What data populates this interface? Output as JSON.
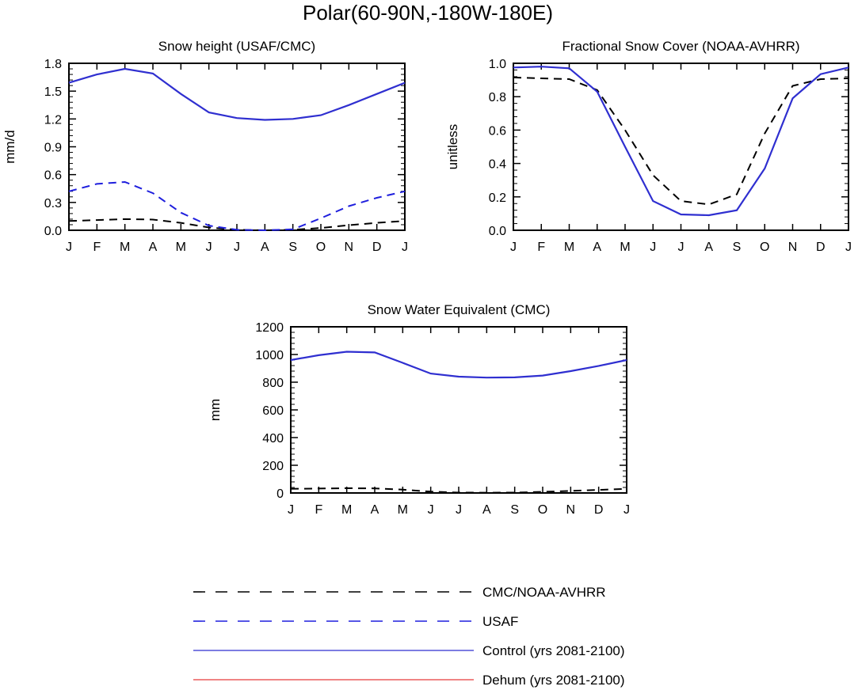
{
  "figure": {
    "title": "Polar(60-90N,-180W-180E)"
  },
  "colors": {
    "obs": "#000000",
    "usaf": "#1f1fdd",
    "control": "#2f2fd0",
    "dehum": "#e83a3a"
  },
  "chart_data": [
    {
      "type": "line",
      "title": "Snow height (USAF/CMC)",
      "ylabel": "mm/d",
      "xlabel": "",
      "categories": [
        "J",
        "F",
        "M",
        "A",
        "M",
        "J",
        "J",
        "A",
        "S",
        "O",
        "N",
        "D",
        "J"
      ],
      "ylim": [
        0,
        1.8
      ],
      "yticks": [
        "0.0",
        "0.3",
        "0.6",
        "0.9",
        "1.2",
        "1.5",
        "1.8"
      ],
      "series": [
        {
          "name": "CMC/NOAA-AVHRR",
          "style": "dashed",
          "color": "#000000",
          "values": [
            0.1,
            0.11,
            0.12,
            0.115,
            0.08,
            0.03,
            0.005,
            0.0,
            0.005,
            0.025,
            0.055,
            0.08,
            0.1
          ]
        },
        {
          "name": "USAF",
          "style": "dashed",
          "color": "#1f1fdd",
          "values": [
            0.42,
            0.5,
            0.52,
            0.4,
            0.19,
            0.05,
            0.005,
            0.0,
            0.01,
            0.13,
            0.26,
            0.35,
            0.42
          ]
        },
        {
          "name": "Control (yrs 2081-2100)",
          "style": "solid",
          "color": "#2f2fd0",
          "values": [
            1.59,
            1.68,
            1.74,
            1.69,
            1.47,
            1.27,
            1.21,
            1.19,
            1.2,
            1.24,
            1.35,
            1.47,
            1.59
          ]
        }
      ]
    },
    {
      "type": "line",
      "title": "Fractional Snow Cover (NOAA-AVHRR)",
      "ylabel": "unitless",
      "xlabel": "",
      "categories": [
        "J",
        "F",
        "M",
        "A",
        "M",
        "J",
        "J",
        "A",
        "S",
        "O",
        "N",
        "D",
        "J"
      ],
      "ylim": [
        0,
        1.0
      ],
      "yticks": [
        "0.0",
        "0.2",
        "0.4",
        "0.6",
        "0.8",
        "1.0"
      ],
      "series": [
        {
          "name": "CMC/NOAA-AVHRR",
          "style": "dashed",
          "color": "#000000",
          "values": [
            0.915,
            0.91,
            0.905,
            0.84,
            0.6,
            0.33,
            0.175,
            0.155,
            0.215,
            0.58,
            0.865,
            0.905,
            0.91
          ]
        },
        {
          "name": "Control (yrs 2081-2100)",
          "style": "solid",
          "color": "#2f2fd0",
          "values": [
            0.975,
            0.98,
            0.97,
            0.83,
            0.5,
            0.175,
            0.095,
            0.09,
            0.12,
            0.37,
            0.79,
            0.935,
            0.975
          ]
        }
      ]
    },
    {
      "type": "line",
      "title": "Snow Water Equivalent (CMC)",
      "ylabel": "mm",
      "xlabel": "",
      "categories": [
        "J",
        "F",
        "M",
        "A",
        "M",
        "J",
        "J",
        "A",
        "S",
        "O",
        "N",
        "D",
        "J"
      ],
      "ylim": [
        0,
        1200
      ],
      "yticks": [
        "0",
        "200",
        "400",
        "600",
        "800",
        "1000",
        "1200"
      ],
      "series": [
        {
          "name": "CMC/NOAA-AVHRR",
          "style": "dashed",
          "color": "#000000",
          "values": [
            30,
            32,
            34,
            33,
            24,
            10,
            3,
            2,
            3,
            8,
            15,
            22,
            30
          ]
        },
        {
          "name": "Control (yrs 2081-2100)",
          "style": "solid",
          "color": "#2f2fd0",
          "values": [
            960,
            995,
            1020,
            1015,
            940,
            862,
            840,
            833,
            835,
            848,
            880,
            918,
            960
          ]
        }
      ]
    }
  ],
  "legend": [
    {
      "label": "CMC/NOAA-AVHRR",
      "style": "dashed",
      "color": "#000000"
    },
    {
      "label": "USAF",
      "style": "dashed",
      "color": "#1f1fdd"
    },
    {
      "label": "Control (yrs 2081-2100)",
      "style": "solid",
      "color": "#2f2fd0"
    },
    {
      "label": "Dehum (yrs 2081-2100)",
      "style": "solid",
      "color": "#e83a3a"
    }
  ]
}
